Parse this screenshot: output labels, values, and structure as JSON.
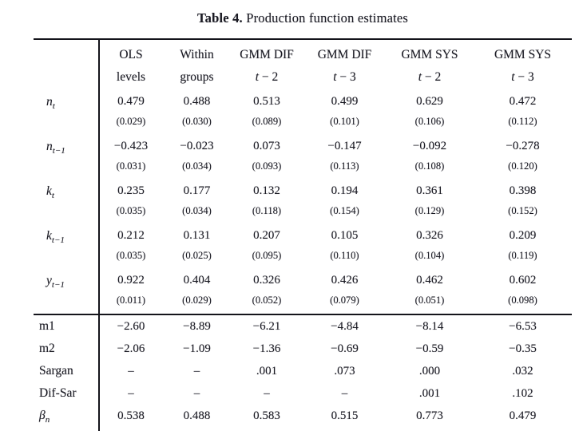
{
  "title": {
    "label": "Table 4.",
    "text": " Production function estimates"
  },
  "table": {
    "columns": [
      {
        "line1": "OLS",
        "line2": "levels",
        "math2": false
      },
      {
        "line1": "Within",
        "line2": "groups",
        "math2": false
      },
      {
        "line1": "GMM DIF",
        "line2": "t − 2",
        "math2": true
      },
      {
        "line1": "GMM DIF",
        "line2": "t − 3",
        "math2": true
      },
      {
        "line1": "GMM SYS",
        "line2": "t − 2",
        "math2": true
      },
      {
        "line1": "GMM SYS",
        "line2": "t − 3",
        "math2": true
      }
    ],
    "coef_rows": [
      {
        "base": "n",
        "sub": "t",
        "values": [
          "0.479",
          "0.488",
          "0.513",
          "0.499",
          "0.629",
          "0.472"
        ],
        "se": [
          "(0.029)",
          "(0.030)",
          "(0.089)",
          "(0.101)",
          "(0.106)",
          "(0.112)"
        ]
      },
      {
        "base": "n",
        "sub": "t−1",
        "values": [
          "−0.423",
          "−0.023",
          "0.073",
          "−0.147",
          "−0.092",
          "−0.278"
        ],
        "se": [
          "(0.031)",
          "(0.034)",
          "(0.093)",
          "(0.113)",
          "(0.108)",
          "(0.120)"
        ]
      },
      {
        "base": "k",
        "sub": "t",
        "values": [
          "0.235",
          "0.177",
          "0.132",
          "0.194",
          "0.361",
          "0.398"
        ],
        "se": [
          "(0.035)",
          "(0.034)",
          "(0.118)",
          "(0.154)",
          "(0.129)",
          "(0.152)"
        ]
      },
      {
        "base": "k",
        "sub": "t−1",
        "values": [
          "0.212",
          "0.131",
          "0.207",
          "0.105",
          "0.326",
          "0.209"
        ],
        "se": [
          "(0.035)",
          "(0.025)",
          "(0.095)",
          "(0.110)",
          "(0.104)",
          "(0.119)"
        ]
      },
      {
        "base": "y",
        "sub": "t−1",
        "values": [
          "0.922",
          "0.404",
          "0.326",
          "0.426",
          "0.462",
          "0.602"
        ],
        "se": [
          "(0.011)",
          "(0.029)",
          "(0.052)",
          "(0.079)",
          "(0.051)",
          "(0.098)"
        ]
      }
    ],
    "stat_rows": [
      {
        "label": "m1",
        "values": [
          "−2.60",
          "−8.89",
          "−6.21",
          "−4.84",
          "−8.14",
          "−6.53"
        ]
      },
      {
        "label": "m2",
        "values": [
          "−2.06",
          "−1.09",
          "−1.36",
          "−0.69",
          "−0.59",
          "−0.35"
        ]
      },
      {
        "label": "Sargan",
        "values": [
          "–",
          "–",
          ".001",
          ".073",
          ".000",
          ".032"
        ]
      },
      {
        "label": "Dif-Sar",
        "values": [
          "–",
          "–",
          "–",
          "–",
          ".001",
          ".102"
        ]
      },
      {
        "base": "β",
        "sub": "n",
        "values": [
          "0.538",
          "0.488",
          "0.583",
          "0.515",
          "0.773",
          "0.479"
        ]
      }
    ],
    "colors": {
      "ink": "#191922",
      "rule": "#14141b",
      "background": "#ffffff"
    }
  }
}
